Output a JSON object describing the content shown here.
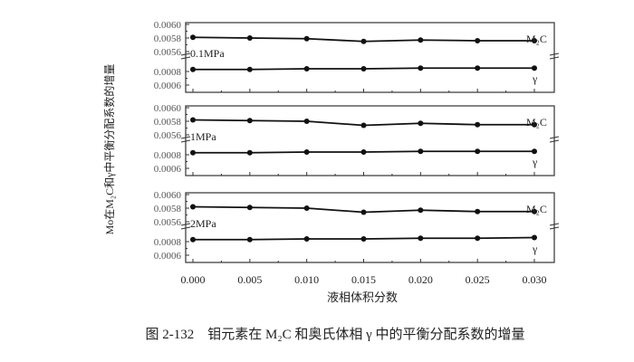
{
  "chart_data": [
    {
      "type": "line",
      "panel_label": "0.1MPa",
      "x": [
        0.0,
        0.005,
        0.01,
        0.015,
        0.02,
        0.025,
        0.03
      ],
      "series": [
        {
          "name": "M2C",
          "values": [
            0.00581,
            0.0058,
            0.00579,
            0.00575,
            0.00577,
            0.00576,
            0.00576
          ]
        },
        {
          "name": "γ",
          "values": [
            0.00083,
            0.00083,
            0.00084,
            0.00084,
            0.00085,
            0.00085,
            0.00085
          ]
        }
      ],
      "y_ticks_upper": [
        "0.0060",
        "0.0058",
        "0.0056"
      ],
      "y_ticks_lower": [
        "0.0008",
        "0.0006"
      ],
      "broken_axis": true
    },
    {
      "type": "line",
      "panel_label": "1MPa",
      "x": [
        0.0,
        0.005,
        0.01,
        0.015,
        0.02,
        0.025,
        0.03
      ],
      "series": [
        {
          "name": "M2C",
          "values": [
            0.00582,
            0.00581,
            0.0058,
            0.00574,
            0.00577,
            0.00575,
            0.00575
          ]
        },
        {
          "name": "γ",
          "values": [
            0.00083,
            0.00083,
            0.00084,
            0.00084,
            0.00085,
            0.00085,
            0.00085
          ]
        }
      ],
      "y_ticks_upper": [
        "0.0060",
        "0.0058",
        "0.0056"
      ],
      "y_ticks_lower": [
        "0.0008",
        "0.0006"
      ],
      "broken_axis": true
    },
    {
      "type": "line",
      "panel_label": "2MPa",
      "x": [
        0.0,
        0.005,
        0.01,
        0.015,
        0.02,
        0.025,
        0.03
      ],
      "series": [
        {
          "name": "M2C",
          "values": [
            0.00582,
            0.00581,
            0.0058,
            0.00574,
            0.00577,
            0.00575,
            0.00575
          ]
        },
        {
          "name": "γ",
          "values": [
            0.00083,
            0.00083,
            0.00084,
            0.00084,
            0.00085,
            0.00085,
            0.00086
          ]
        }
      ],
      "y_ticks_upper": [
        "0.0060",
        "0.0058",
        "0.0056"
      ],
      "y_ticks_lower": [
        "0.0008",
        "0.0006"
      ],
      "broken_axis": true
    }
  ],
  "x_tick_labels": [
    "0.000",
    "0.005",
    "0.010",
    "0.015",
    "0.020",
    "0.025",
    "0.030"
  ],
  "xlabel": "液相体积分数",
  "ylabel": "Mo在M₂C和γ中平衡分配系数的增量",
  "caption": "图 2-132　钼元素在 M₂C 和奥氏体相 γ 中的平衡分配系数的增量",
  "series_labels": {
    "m2c": "M₂C",
    "gamma": "γ"
  }
}
